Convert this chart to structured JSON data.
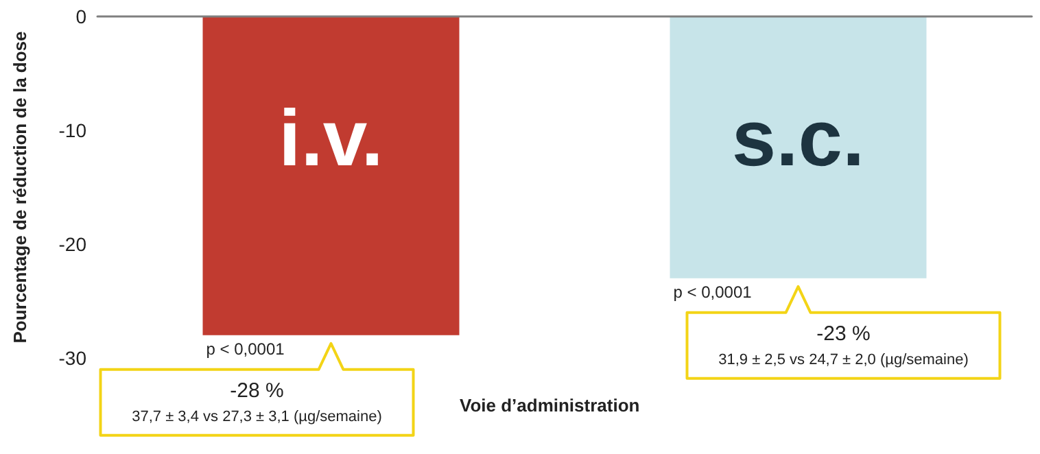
{
  "chart_data": {
    "type": "bar",
    "xlabel": "Voie d’administration",
    "ylabel": "Pourcentage de réduction de la dose",
    "categories": [
      "i.v.",
      "s.c."
    ],
    "values": [
      -28,
      -23
    ],
    "colors": [
      "#c13b30",
      "#c7e4e9"
    ],
    "value_labels": [
      "-28 %",
      "-23 %"
    ],
    "ylim": [
      -30,
      0
    ],
    "yticks": [
      0,
      -10,
      -20,
      -30
    ],
    "grid": false,
    "annotations": [
      {
        "text": "p < 0,0001",
        "x": "i.v.",
        "y": -28
      },
      {
        "text": "p < 0,0001",
        "x": "s.c.",
        "y": -23
      },
      "37,7 ± 3,4 vs 27,3 ± 3,1 (µg/semaine)",
      "31,9 ± 2,5 vs 24,7 ± 2,0 (µg/semaine)"
    ]
  }
}
